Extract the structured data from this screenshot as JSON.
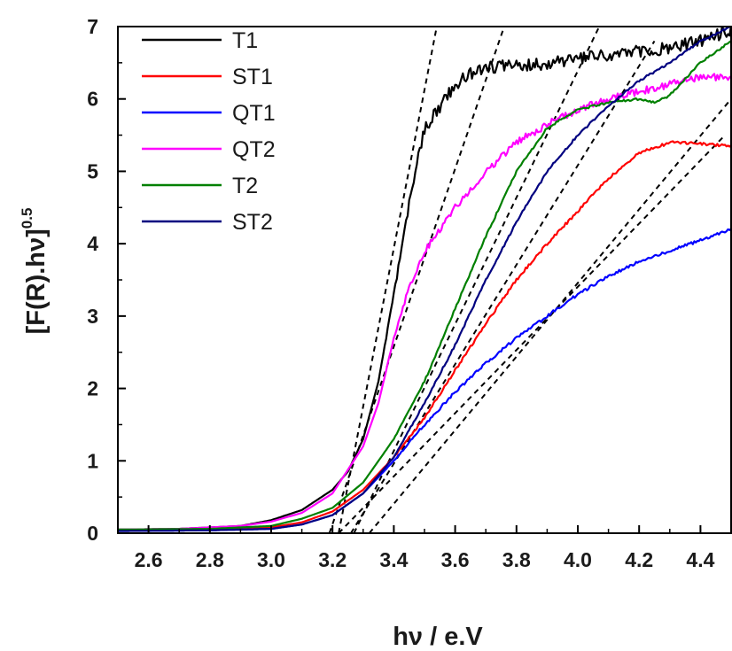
{
  "chart_data": {
    "type": "line",
    "title": "",
    "xlabel": "hν / e.V",
    "ylabel": "[F(R).hν]",
    "ylabel_superscript": "0.5",
    "xlim": [
      2.5,
      4.5
    ],
    "ylim": [
      0,
      7
    ],
    "x_ticks": [
      "2.6",
      "2.8",
      "3.0",
      "3.2",
      "3.4",
      "3.6",
      "3.8",
      "4.0",
      "4.2",
      "4.4"
    ],
    "y_ticks": [
      "0",
      "1",
      "2",
      "3",
      "4",
      "5",
      "6",
      "7"
    ],
    "grid": false,
    "legend_position": "top-left",
    "series": [
      {
        "name": "T1",
        "color": "#000000",
        "noise": 0.09,
        "points": [
          [
            2.5,
            0.05
          ],
          [
            2.7,
            0.06
          ],
          [
            2.9,
            0.1
          ],
          [
            3.0,
            0.18
          ],
          [
            3.1,
            0.32
          ],
          [
            3.2,
            0.6
          ],
          [
            3.25,
            0.85
          ],
          [
            3.3,
            1.3
          ],
          [
            3.35,
            2.1
          ],
          [
            3.4,
            3.3
          ],
          [
            3.45,
            4.55
          ],
          [
            3.48,
            5.2
          ],
          [
            3.5,
            5.6
          ],
          [
            3.55,
            5.9
          ],
          [
            3.6,
            6.2
          ],
          [
            3.65,
            6.35
          ],
          [
            3.7,
            6.45
          ],
          [
            3.8,
            6.45
          ],
          [
            3.9,
            6.5
          ],
          [
            4.0,
            6.55
          ],
          [
            4.1,
            6.6
          ],
          [
            4.2,
            6.65
          ],
          [
            4.3,
            6.7
          ],
          [
            4.4,
            6.8
          ],
          [
            4.5,
            6.95
          ]
        ]
      },
      {
        "name": "ST1",
        "color": "#ff0000",
        "noise": 0.02,
        "points": [
          [
            2.5,
            0.04
          ],
          [
            2.8,
            0.05
          ],
          [
            3.0,
            0.08
          ],
          [
            3.1,
            0.15
          ],
          [
            3.2,
            0.3
          ],
          [
            3.3,
            0.6
          ],
          [
            3.4,
            1.05
          ],
          [
            3.5,
            1.6
          ],
          [
            3.6,
            2.25
          ],
          [
            3.7,
            2.9
          ],
          [
            3.8,
            3.5
          ],
          [
            3.9,
            4.0
          ],
          [
            4.0,
            4.45
          ],
          [
            4.1,
            4.9
          ],
          [
            4.2,
            5.25
          ],
          [
            4.3,
            5.4
          ],
          [
            4.4,
            5.38
          ],
          [
            4.5,
            5.35
          ]
        ]
      },
      {
        "name": "QT1",
        "color": "#0000ff",
        "noise": 0.02,
        "points": [
          [
            2.5,
            0.03
          ],
          [
            2.8,
            0.04
          ],
          [
            3.0,
            0.06
          ],
          [
            3.1,
            0.12
          ],
          [
            3.2,
            0.25
          ],
          [
            3.3,
            0.55
          ],
          [
            3.4,
            1.0
          ],
          [
            3.5,
            1.5
          ],
          [
            3.6,
            1.95
          ],
          [
            3.7,
            2.35
          ],
          [
            3.8,
            2.7
          ],
          [
            3.9,
            3.0
          ],
          [
            4.0,
            3.3
          ],
          [
            4.1,
            3.55
          ],
          [
            4.2,
            3.75
          ],
          [
            4.3,
            3.9
          ],
          [
            4.4,
            4.05
          ],
          [
            4.5,
            4.2
          ]
        ]
      },
      {
        "name": "QT2",
        "color": "#ff00ff",
        "noise": 0.05,
        "points": [
          [
            2.5,
            0.05
          ],
          [
            2.7,
            0.06
          ],
          [
            2.9,
            0.1
          ],
          [
            3.0,
            0.16
          ],
          [
            3.1,
            0.28
          ],
          [
            3.2,
            0.55
          ],
          [
            3.3,
            1.2
          ],
          [
            3.35,
            1.8
          ],
          [
            3.4,
            2.7
          ],
          [
            3.45,
            3.4
          ],
          [
            3.5,
            3.9
          ],
          [
            3.55,
            4.2
          ],
          [
            3.6,
            4.5
          ],
          [
            3.7,
            5.0
          ],
          [
            3.8,
            5.4
          ],
          [
            3.9,
            5.65
          ],
          [
            4.0,
            5.85
          ],
          [
            4.1,
            6.0
          ],
          [
            4.2,
            6.1
          ],
          [
            4.3,
            6.2
          ],
          [
            4.4,
            6.3
          ],
          [
            4.5,
            6.3
          ]
        ]
      },
      {
        "name": "T2",
        "color": "#008000",
        "noise": 0.015,
        "points": [
          [
            2.5,
            0.05
          ],
          [
            2.8,
            0.06
          ],
          [
            3.0,
            0.1
          ],
          [
            3.1,
            0.2
          ],
          [
            3.2,
            0.35
          ],
          [
            3.3,
            0.7
          ],
          [
            3.4,
            1.3
          ],
          [
            3.5,
            2.1
          ],
          [
            3.6,
            3.1
          ],
          [
            3.7,
            4.1
          ],
          [
            3.8,
            5.0
          ],
          [
            3.85,
            5.3
          ],
          [
            3.9,
            5.6
          ],
          [
            4.0,
            5.85
          ],
          [
            4.1,
            5.95
          ],
          [
            4.2,
            6.0
          ],
          [
            4.25,
            5.95
          ],
          [
            4.3,
            6.05
          ],
          [
            4.4,
            6.5
          ],
          [
            4.5,
            6.8
          ]
        ]
      },
      {
        "name": "ST2",
        "color": "#000080",
        "noise": 0.015,
        "points": [
          [
            2.5,
            0.03
          ],
          [
            2.8,
            0.04
          ],
          [
            3.0,
            0.06
          ],
          [
            3.1,
            0.12
          ],
          [
            3.2,
            0.25
          ],
          [
            3.3,
            0.55
          ],
          [
            3.4,
            1.05
          ],
          [
            3.5,
            1.8
          ],
          [
            3.6,
            2.6
          ],
          [
            3.7,
            3.5
          ],
          [
            3.8,
            4.3
          ],
          [
            3.9,
            5.0
          ],
          [
            4.0,
            5.5
          ],
          [
            4.1,
            5.9
          ],
          [
            4.2,
            6.25
          ],
          [
            4.3,
            6.5
          ],
          [
            4.4,
            6.8
          ],
          [
            4.5,
            7.0
          ]
        ]
      }
    ],
    "tangent_lines": [
      {
        "x1": 3.22,
        "y1": 0,
        "x2": 3.54,
        "y2": 7
      },
      {
        "x1": 3.19,
        "y1": 0,
        "x2": 3.76,
        "y2": 7
      },
      {
        "x1": 3.27,
        "y1": 0,
        "x2": 4.07,
        "y2": 7
      },
      {
        "x1": 3.26,
        "y1": 0,
        "x2": 4.25,
        "y2": 6.8
      },
      {
        "x1": 3.32,
        "y1": 0,
        "x2": 4.5,
        "y2": 6.0
      },
      {
        "x1": 3.22,
        "y1": 0,
        "x2": 4.48,
        "y2": 5.5
      }
    ]
  }
}
